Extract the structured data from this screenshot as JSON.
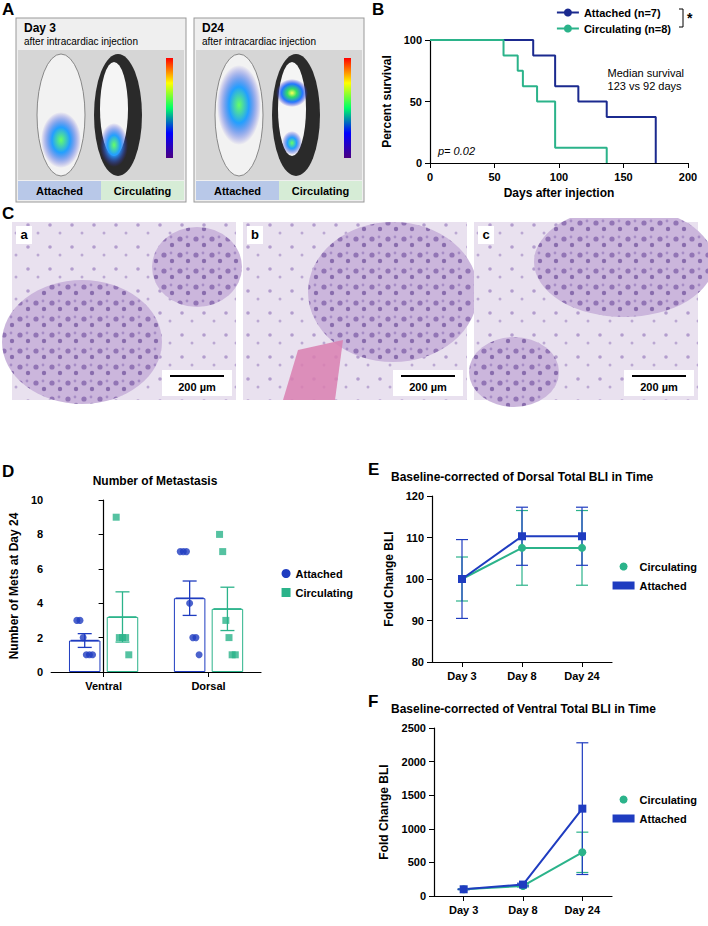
{
  "images": [
    {
      "panel": "A",
      "tiles": [
        {
          "title": "Day 3",
          "subtitle": "after intracardiac injection",
          "labels": [
            "Attached",
            "Circulating"
          ]
        },
        {
          "title": "D24",
          "subtitle": "after intracardiac injection",
          "labels": [
            "Attached",
            "Circulating"
          ]
        }
      ]
    },
    {
      "panel": "C",
      "tiles": [
        {
          "label": "a",
          "scale_bar": "200 µm"
        },
        {
          "label": "b",
          "scale_bar": "200 µm"
        },
        {
          "label": "c",
          "scale_bar": "200 µm"
        }
      ]
    }
  ],
  "chart_data": [
    {
      "panel": "B",
      "type": "step",
      "xlabel": "Days after injection",
      "ylabel": "Percent survival",
      "xlim": [
        0,
        200
      ],
      "xticks": [
        0,
        50,
        100,
        150,
        200
      ],
      "ylim": [
        0,
        100
      ],
      "yticks": [
        0,
        50,
        100
      ],
      "grid": false,
      "legend": "upper right",
      "annotations": {
        "median": "Median survival\n123 vs 92 days",
        "p_value": "p= 0.02",
        "significance": "*"
      },
      "series": [
        {
          "name": "Attached (n=7)",
          "color": "#1b2a8f",
          "x": [
            0,
            80,
            97,
            115,
            137,
            175
          ],
          "values": [
            100,
            87.5,
            62.5,
            50,
            37.5,
            0
          ]
        },
        {
          "name": "Circulating (n=8)",
          "color": "#2bb38a",
          "x": [
            0,
            57,
            68,
            72,
            83,
            97,
            137
          ],
          "values": [
            100,
            87.5,
            75,
            62.5,
            50,
            12.5,
            0
          ]
        }
      ]
    },
    {
      "panel": "D",
      "type": "bar",
      "title": "Number of Metastasis",
      "ylabel": "Number of Mets at Day 24",
      "categories": [
        "Ventral",
        "Dorsal"
      ],
      "ylim": [
        0,
        10
      ],
      "yticks": [
        0,
        2,
        4,
        6,
        8,
        10
      ],
      "grid": false,
      "legend": "right",
      "series": [
        {
          "name": "Attached",
          "color": "#1f3cc0",
          "marker": "circle",
          "values": [
            1.83,
            4.29
          ],
          "errors": [
            0.4,
            1.0
          ],
          "points": [
            [
              3,
              3,
              2,
              1,
              1,
              1
            ],
            [
              7,
              7,
              7,
              4,
              2,
              2,
              1
            ]
          ]
        },
        {
          "name": "Circulating",
          "color": "#2bb38a",
          "marker": "square",
          "values": [
            3.2,
            3.67
          ],
          "errors": [
            1.46,
            1.26
          ],
          "points": [
            [
              9,
              2,
              2,
              2,
              1
            ],
            [
              8,
              7,
              3,
              2,
              1,
              1
            ]
          ]
        }
      ]
    },
    {
      "panel": "E",
      "type": "line",
      "title": "Baseline-corrected of Dorsal Total BLI in Time",
      "ylabel": "Fold Change BLI",
      "categories": [
        "Day 3",
        "Day 8",
        "Day 24"
      ],
      "ylim": [
        80,
        120
      ],
      "yticks": [
        80,
        90,
        100,
        110,
        120
      ],
      "grid": false,
      "legend": "right",
      "series": [
        {
          "name": "Circulating",
          "color": "#2bb38a",
          "marker": "circle",
          "values": [
            100,
            107.5,
            107.5
          ],
          "errors": [
            5.3,
            9,
            9
          ]
        },
        {
          "name": "Attached",
          "color": "#1f3cc0",
          "marker": "square",
          "values": [
            100,
            110.3,
            110.3
          ],
          "errors": [
            9.5,
            7,
            7
          ]
        }
      ]
    },
    {
      "panel": "F",
      "type": "line",
      "title": "Baseline-corrected of Ventral Total BLI in Time",
      "ylabel": "Fold Change BLI",
      "categories": [
        "Day 3",
        "Day 8",
        "Day 24"
      ],
      "ylim": [
        0,
        2500
      ],
      "yticks": [
        0,
        500,
        1000,
        1500,
        2000,
        2500
      ],
      "grid": false,
      "legend": "right",
      "series": [
        {
          "name": "Circulating",
          "color": "#2bb38a",
          "marker": "circle",
          "values": [
            100,
            150,
            650
          ],
          "errors": [
            5,
            15,
            300
          ]
        },
        {
          "name": "Attached",
          "color": "#1f3cc0",
          "marker": "square",
          "values": [
            100,
            170,
            1300
          ],
          "errors": [
            5,
            20,
            980
          ]
        }
      ]
    }
  ]
}
